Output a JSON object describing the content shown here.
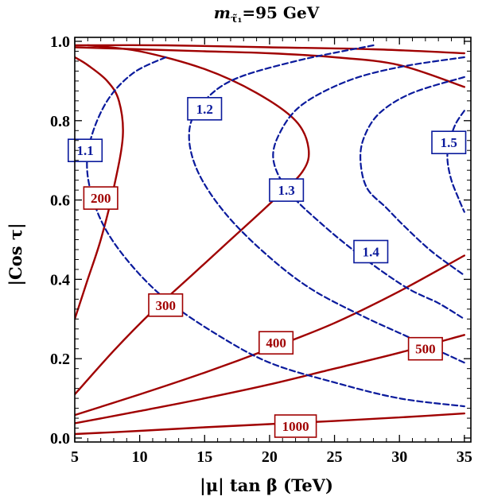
{
  "chart_data": {
    "type": "line",
    "title": "m",
    "title_sub": "τ̃₁",
    "title_value": "=95 GeV",
    "xlabel": "|μ| tan β (TeV)",
    "ylabel": "|Cos τ|",
    "xlim": [
      5,
      35.5
    ],
    "ylim": [
      -0.01,
      1.01
    ],
    "x_ticks": [
      5,
      10,
      15,
      20,
      25,
      30,
      35
    ],
    "y_ticks": [
      0.0,
      0.2,
      0.4,
      0.6,
      0.8,
      1.0
    ],
    "x_tick_labels": [
      "5",
      "10",
      "15",
      "20",
      "25",
      "30",
      "35"
    ],
    "y_tick_labels": [
      "0.0",
      "0.2",
      "0.4",
      "0.6",
      "0.8",
      "1.0"
    ],
    "grid": false,
    "colors": {
      "solid": "#a00000",
      "dashed": "#0a1a9c"
    },
    "series": [
      {
        "label": "200",
        "style": "solid",
        "label_pos": [
          7.0,
          0.605
        ],
        "points": [
          [
            5,
            0.3
          ],
          [
            6,
            0.4
          ],
          [
            7,
            0.5
          ],
          [
            8,
            0.63
          ],
          [
            8.7,
            0.76
          ],
          [
            8.4,
            0.85
          ],
          [
            7.5,
            0.9
          ],
          [
            6,
            0.94
          ],
          [
            5,
            0.96
          ]
        ]
      },
      {
        "label": "300",
        "style": "solid",
        "label_pos": [
          12.0,
          0.335
        ],
        "points": [
          [
            5,
            0.11
          ],
          [
            8,
            0.22
          ],
          [
            11,
            0.32
          ],
          [
            14,
            0.41
          ],
          [
            17,
            0.5
          ],
          [
            20,
            0.59
          ],
          [
            22.5,
            0.67
          ],
          [
            23,
            0.73
          ],
          [
            22,
            0.8
          ],
          [
            19,
            0.87
          ],
          [
            15,
            0.93
          ],
          [
            10,
            0.975
          ],
          [
            6,
            0.99
          ]
        ]
      },
      {
        "label": "400",
        "style": "solid",
        "label_pos": [
          20.5,
          0.24
        ],
        "points": [
          [
            5,
            0.058
          ],
          [
            10,
            0.11
          ],
          [
            15,
            0.165
          ],
          [
            20,
            0.225
          ],
          [
            25,
            0.29
          ],
          [
            30,
            0.37
          ],
          [
            35,
            0.46
          ]
        ]
      },
      {
        "label": "500",
        "style": "solid",
        "label_pos": [
          32.0,
          0.225
        ],
        "points": [
          [
            5,
            0.037
          ],
          [
            10,
            0.068
          ],
          [
            15,
            0.1
          ],
          [
            20,
            0.135
          ],
          [
            25,
            0.175
          ],
          [
            30,
            0.215
          ],
          [
            35,
            0.26
          ]
        ]
      },
      {
        "label": "1000",
        "style": "solid",
        "label_pos": [
          22.0,
          0.03
        ],
        "points": [
          [
            5,
            0.01
          ],
          [
            10,
            0.018
          ],
          [
            15,
            0.027
          ],
          [
            20,
            0.035
          ],
          [
            25,
            0.043
          ],
          [
            30,
            0.052
          ],
          [
            35,
            0.062
          ]
        ]
      },
      {
        "label": "",
        "style": "solid",
        "label_pos": null,
        "points": [
          [
            5,
            0.985
          ],
          [
            10,
            0.98
          ],
          [
            15,
            0.975
          ],
          [
            20,
            0.97
          ],
          [
            25,
            0.96
          ],
          [
            30,
            0.94
          ],
          [
            35,
            0.885
          ]
        ]
      },
      {
        "label": "",
        "style": "solid",
        "label_pos": null,
        "points": [
          [
            5,
            0.99
          ],
          [
            12,
            0.99
          ],
          [
            20,
            0.985
          ],
          [
            28,
            0.98
          ],
          [
            35,
            0.97
          ]
        ]
      },
      {
        "label": "1.1",
        "style": "dashed",
        "label_pos": [
          5.8,
          0.725
        ],
        "points": [
          [
            12,
            0.96
          ],
          [
            9.5,
            0.92
          ],
          [
            7.5,
            0.85
          ],
          [
            6.2,
            0.75
          ],
          [
            6.0,
            0.66
          ],
          [
            7,
            0.55
          ],
          [
            9,
            0.45
          ],
          [
            12,
            0.35
          ],
          [
            16,
            0.26
          ],
          [
            20,
            0.19
          ],
          [
            25,
            0.14
          ],
          [
            30,
            0.1
          ],
          [
            35,
            0.08
          ]
        ]
      },
      {
        "label": "1.2",
        "style": "dashed",
        "label_pos": [
          15.0,
          0.83
        ],
        "points": [
          [
            28,
            0.99
          ],
          [
            22,
            0.95
          ],
          [
            17,
            0.9
          ],
          [
            14.5,
            0.83
          ],
          [
            13.8,
            0.76
          ],
          [
            14.5,
            0.67
          ],
          [
            16.5,
            0.57
          ],
          [
            19.5,
            0.47
          ],
          [
            23,
            0.38
          ],
          [
            27,
            0.31
          ],
          [
            31,
            0.25
          ],
          [
            35,
            0.19
          ]
        ]
      },
      {
        "label": "1.3",
        "style": "dashed",
        "label_pos": [
          21.3,
          0.625
        ],
        "points": [
          [
            35,
            0.96
          ],
          [
            30,
            0.935
          ],
          [
            26,
            0.9
          ],
          [
            22.5,
            0.84
          ],
          [
            20.8,
            0.77
          ],
          [
            20.3,
            0.7
          ],
          [
            21.5,
            0.62
          ],
          [
            24,
            0.54
          ],
          [
            27,
            0.46
          ],
          [
            30.5,
            0.38
          ],
          [
            33,
            0.34
          ],
          [
            35,
            0.3
          ]
        ]
      },
      {
        "label": "1.4",
        "style": "dashed",
        "label_pos": [
          27.8,
          0.47
        ],
        "points": [
          [
            35,
            0.91
          ],
          [
            31,
            0.87
          ],
          [
            28.5,
            0.82
          ],
          [
            27.3,
            0.76
          ],
          [
            27.0,
            0.7
          ],
          [
            27.5,
            0.63
          ],
          [
            29,
            0.58
          ],
          [
            30.5,
            0.53
          ],
          [
            32.5,
            0.47
          ],
          [
            35,
            0.41
          ]
        ]
      },
      {
        "label": "1.5",
        "style": "dashed",
        "label_pos": [
          33.8,
          0.745
        ],
        "points": [
          [
            35,
            0.825
          ],
          [
            34.3,
            0.79
          ],
          [
            33.8,
            0.74
          ],
          [
            33.7,
            0.7
          ],
          [
            34.0,
            0.65
          ],
          [
            34.6,
            0.6
          ],
          [
            35,
            0.57
          ]
        ]
      }
    ]
  }
}
